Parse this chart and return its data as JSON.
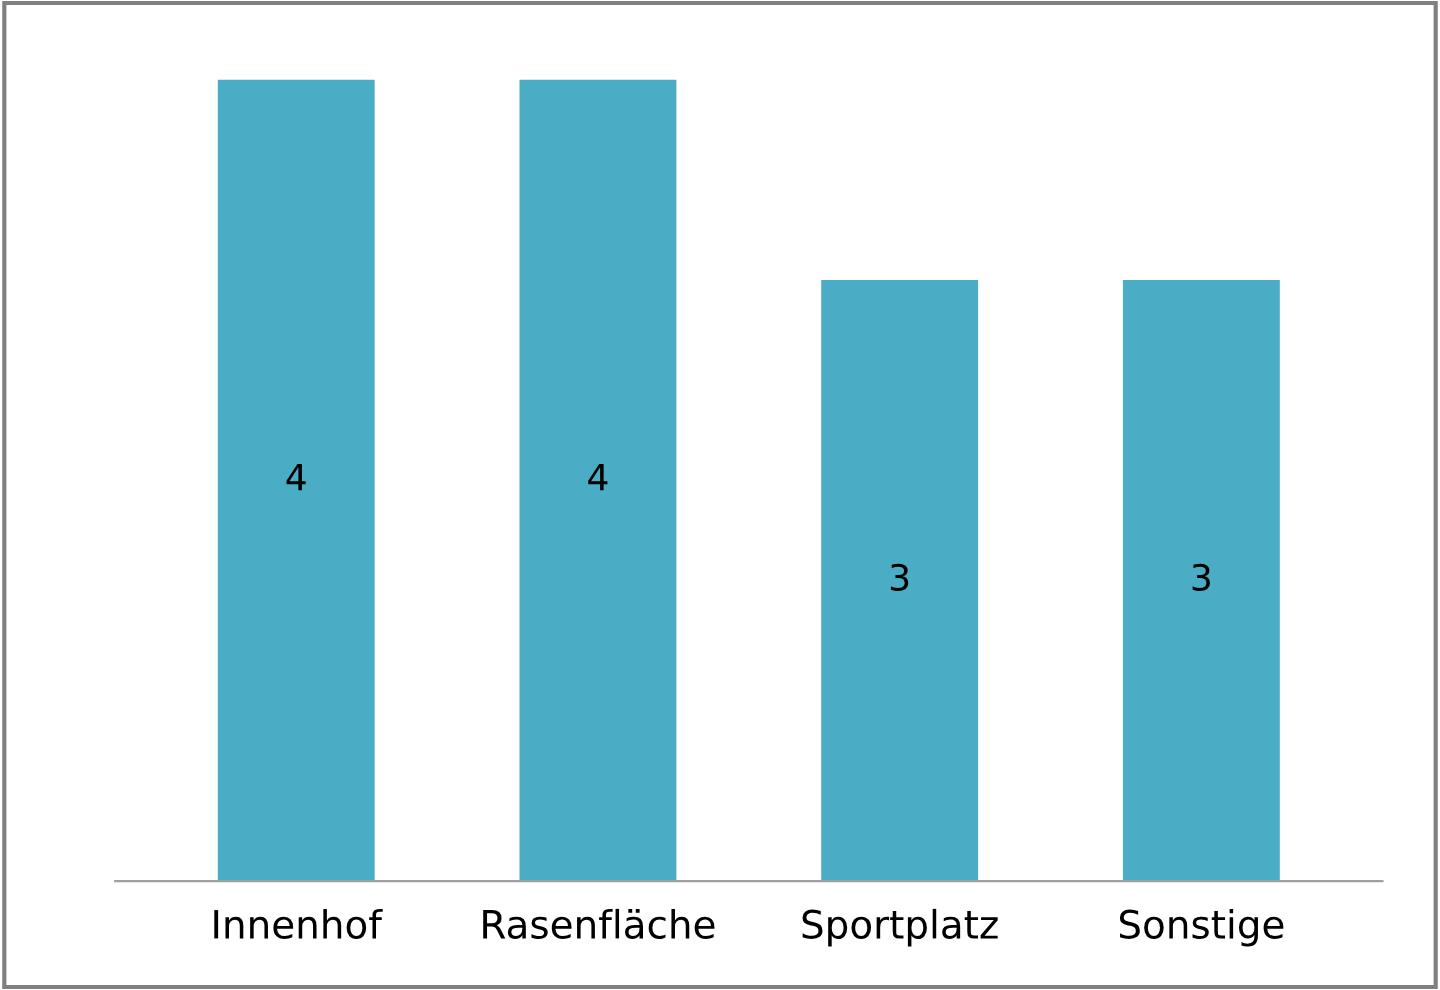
{
  "chart_data": {
    "type": "bar",
    "categories": [
      "Innenhof",
      "Rasenfläche",
      "Sportplatz",
      "Sonstige"
    ],
    "values": [
      4,
      4,
      3,
      3
    ],
    "color": "#4bacc6",
    "data_labels": true,
    "grid": false,
    "legend": false
  }
}
